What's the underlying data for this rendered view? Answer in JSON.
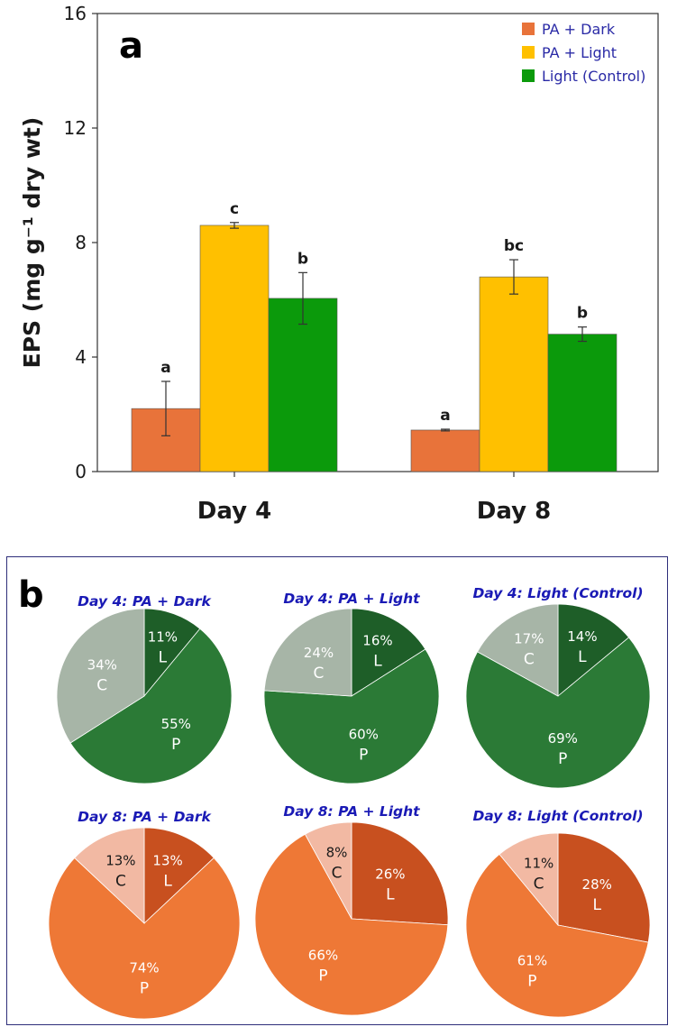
{
  "panel_a_label": "a",
  "panel_b_label": "b",
  "colors": {
    "pa_dark": "#e8733a",
    "pa_light": "#ffc000",
    "light_control": "#0b9a0b",
    "legend_text": "#2a2aa6",
    "pie_title": "#1a1ab5",
    "green_L": "#1e5e28",
    "green_P": "#2b7a36",
    "green_C": "#a7b5a7",
    "orange_L": "#c8501f",
    "orange_P": "#ee7836",
    "orange_C": "#f2b9a3"
  },
  "chart_data": [
    {
      "type": "bar",
      "ylabel": "EPS (mg g⁻¹ dry wt)",
      "ylim": [
        0,
        16
      ],
      "yticks": [
        "0",
        "4",
        "8",
        "12",
        "16"
      ],
      "categories": [
        "Day 4",
        "Day 8"
      ],
      "legend_position": "top-right",
      "series": [
        {
          "name": "PA + Dark",
          "values": [
            2.2,
            1.45
          ],
          "errors": [
            0.95,
            0.03
          ],
          "letters": [
            "a",
            "a"
          ]
        },
        {
          "name": "PA + Light",
          "values": [
            8.6,
            6.8
          ],
          "errors": [
            0.1,
            0.6
          ],
          "letters": [
            "c",
            "bc"
          ]
        },
        {
          "name": "Light (Control)",
          "values": [
            6.05,
            4.8
          ],
          "errors": [
            0.9,
            0.25
          ],
          "letters": [
            "b",
            "b"
          ]
        }
      ]
    },
    {
      "type": "pie",
      "title": "Day 4: PA + Dark",
      "palette": "green",
      "slices": [
        {
          "label": "L",
          "value": 11,
          "text": "11%"
        },
        {
          "label": "P",
          "value": 55,
          "text": "55%"
        },
        {
          "label": "C",
          "value": 34,
          "text": "34%"
        }
      ]
    },
    {
      "type": "pie",
      "title": "Day 4: PA + Light",
      "palette": "green",
      "slices": [
        {
          "label": "L",
          "value": 16,
          "text": "16%"
        },
        {
          "label": "P",
          "value": 60,
          "text": "60%"
        },
        {
          "label": "C",
          "value": 24,
          "text": "24%"
        }
      ]
    },
    {
      "type": "pie",
      "title": "Day 4: Light (Control)",
      "palette": "green",
      "slices": [
        {
          "label": "L",
          "value": 14,
          "text": "14%"
        },
        {
          "label": "P",
          "value": 69,
          "text": "69%"
        },
        {
          "label": "C",
          "value": 17,
          "text": "17%"
        }
      ]
    },
    {
      "type": "pie",
      "title": "Day 8: PA + Dark",
      "palette": "orange",
      "slices": [
        {
          "label": "L",
          "value": 13,
          "text": "13%"
        },
        {
          "label": "P",
          "value": 74,
          "text": "74%"
        },
        {
          "label": "C",
          "value": 13,
          "text": "13%"
        }
      ]
    },
    {
      "type": "pie",
      "title": "Day 8: PA + Light",
      "palette": "orange",
      "slices": [
        {
          "label": "L",
          "value": 26,
          "text": "26%"
        },
        {
          "label": "P",
          "value": 66,
          "text": "66%"
        },
        {
          "label": "C",
          "value": 8,
          "text": "8%"
        }
      ]
    },
    {
      "type": "pie",
      "title": "Day 8: Light (Control)",
      "palette": "orange",
      "slices": [
        {
          "label": "L",
          "value": 28,
          "text": "28%"
        },
        {
          "label": "P",
          "value": 61,
          "text": "61%"
        },
        {
          "label": "C",
          "value": 11,
          "text": "11%"
        }
      ]
    }
  ]
}
